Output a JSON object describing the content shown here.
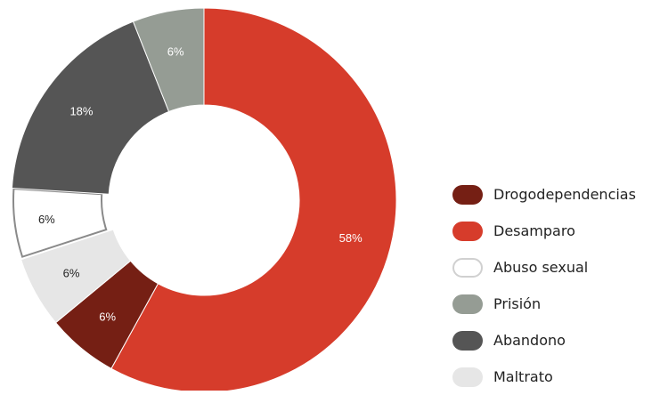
{
  "chart_data": {
    "type": "pie",
    "title": "",
    "legend_position": "right",
    "categories": [
      "Drogodependencias",
      "Desamparo",
      "Abuso sexual",
      "Prisión",
      "Abandono",
      "Maltrato"
    ],
    "values": [
      6,
      58,
      6,
      6,
      18,
      6
    ],
    "labels": [
      "6%",
      "58%",
      "6%",
      "6%",
      "18%",
      "6%"
    ],
    "colors": [
      "#751f14",
      "#d63c2b",
      "#ffffff",
      "#959c94",
      "#555555",
      "#e6e6e6"
    ],
    "label_colors": [
      "#ffffff",
      "#ffffff",
      "#222222",
      "#ffffff",
      "#ffffff",
      "#222222"
    ],
    "slice_order": [
      1,
      0,
      5,
      2,
      4,
      3
    ],
    "highlighted": "Abuso sexual"
  }
}
